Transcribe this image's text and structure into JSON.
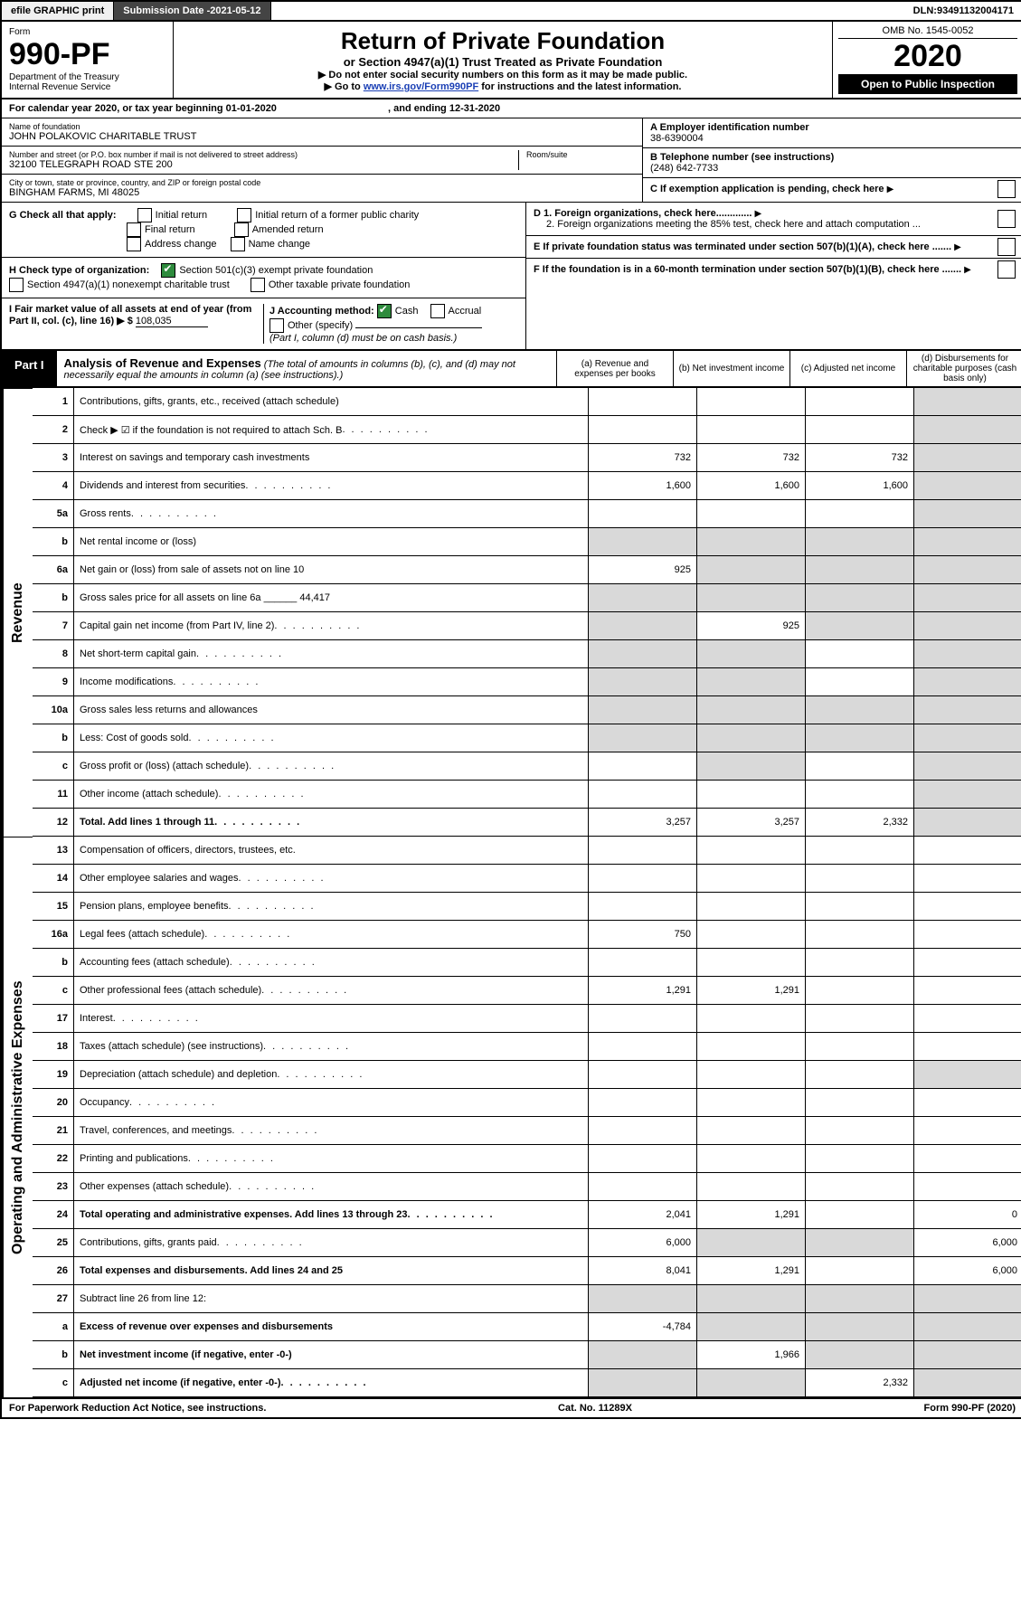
{
  "topbar": {
    "efile": "efile GRAPHIC print",
    "subdate_label": "Submission Date - ",
    "subdate": "2021-05-12",
    "dln_label": "DLN: ",
    "dln": "93491132004171"
  },
  "header": {
    "form_word": "Form",
    "form_num": "990-PF",
    "dept": "Department of the Treasury",
    "irs": "Internal Revenue Service",
    "title": "Return of Private Foundation",
    "subtitle": "or Section 4947(a)(1) Trust Treated as Private Foundation",
    "instr1": "▶ Do not enter social security numbers on this form as it may be made public.",
    "instr2_pre": "▶ Go to ",
    "instr2_link": "www.irs.gov/Form990PF",
    "instr2_post": " for instructions and the latest information.",
    "omb": "OMB No. 1545-0052",
    "year": "2020",
    "open": "Open to Public Inspection"
  },
  "cal": {
    "pre": "For calendar year 2020, or tax year beginning ",
    "begin": "01-01-2020",
    "mid": " , and ending ",
    "end": "12-31-2020"
  },
  "info": {
    "name_lbl": "Name of foundation",
    "name": "JOHN POLAKOVIC CHARITABLE TRUST",
    "addr_lbl": "Number and street (or P.O. box number if mail is not delivered to street address)",
    "addr": "32100 TELEGRAPH ROAD STE 200",
    "room_lbl": "Room/suite",
    "city_lbl": "City or town, state or province, country, and ZIP or foreign postal code",
    "city": "BINGHAM FARMS, MI  48025",
    "ein_lbl": "A Employer identification number",
    "ein": "38-6390004",
    "tel_lbl": "B Telephone number (see instructions)",
    "tel": "(248) 642-7733",
    "c_lbl": "C If exemption application is pending, check here"
  },
  "checks": {
    "g_lbl": "G Check all that apply:",
    "g_opts": [
      "Initial return",
      "Initial return of a former public charity",
      "Final return",
      "Amended return",
      "Address change",
      "Name change"
    ],
    "h_lbl": "H Check type of organization:",
    "h1": "Section 501(c)(3) exempt private foundation",
    "h2": "Section 4947(a)(1) nonexempt charitable trust",
    "h3": "Other taxable private foundation",
    "i_lbl": "I Fair market value of all assets at end of year (from Part II, col. (c), line 16) ▶ $",
    "i_val": "108,035",
    "j_lbl": "J Accounting method:",
    "j_cash": "Cash",
    "j_accr": "Accrual",
    "j_other": "Other (specify)",
    "j_note": "(Part I, column (d) must be on cash basis.)",
    "d1": "D 1. Foreign organizations, check here.............",
    "d2": "2. Foreign organizations meeting the 85% test, check here and attach computation ...",
    "e": "E  If private foundation status was terminated under section 507(b)(1)(A), check here .......",
    "f": "F  If the foundation is in a 60-month termination under section 507(b)(1)(B), check here ......."
  },
  "part1": {
    "tag": "Part I",
    "title": "Analysis of Revenue and Expenses",
    "note": " (The total of amounts in columns (b), (c), and (d) may not necessarily equal the amounts in column (a) (see instructions).)",
    "cols": {
      "a": "(a)  Revenue and expenses per books",
      "b": "(b)  Net investment income",
      "c": "(c)  Adjusted net income",
      "d": "(d)  Disbursements for charitable purposes (cash basis only)"
    }
  },
  "side": {
    "rev": "Revenue",
    "exp": "Operating and Administrative Expenses"
  },
  "rows": [
    {
      "n": "1",
      "d": "Contributions, gifts, grants, etc., received (attach schedule)",
      "a": "",
      "b": "",
      "c": "",
      "dd": "",
      "g": [
        0,
        0,
        0,
        1
      ]
    },
    {
      "n": "2",
      "d": "Check ▶ ☑ if the foundation is not required to attach Sch. B",
      "a": "",
      "b": "",
      "c": "",
      "dd": "",
      "g": [
        0,
        0,
        0,
        1
      ],
      "dots": 1
    },
    {
      "n": "3",
      "d": "Interest on savings and temporary cash investments",
      "a": "732",
      "b": "732",
      "c": "732",
      "dd": "",
      "g": [
        0,
        0,
        0,
        1
      ]
    },
    {
      "n": "4",
      "d": "Dividends and interest from securities",
      "a": "1,600",
      "b": "1,600",
      "c": "1,600",
      "dd": "",
      "g": [
        0,
        0,
        0,
        1
      ],
      "dots": 1
    },
    {
      "n": "5a",
      "d": "Gross rents",
      "a": "",
      "b": "",
      "c": "",
      "dd": "",
      "g": [
        0,
        0,
        0,
        1
      ],
      "dots": 1
    },
    {
      "n": "b",
      "d": "Net rental income or (loss)",
      "a": "",
      "b": "",
      "c": "",
      "dd": "",
      "g": [
        1,
        1,
        1,
        1
      ]
    },
    {
      "n": "6a",
      "d": "Net gain or (loss) from sale of assets not on line 10",
      "a": "925",
      "b": "",
      "c": "",
      "dd": "",
      "g": [
        0,
        1,
        1,
        1
      ]
    },
    {
      "n": "b",
      "d": "Gross sales price for all assets on line 6a ______ 44,417",
      "a": "",
      "b": "",
      "c": "",
      "dd": "",
      "g": [
        1,
        1,
        1,
        1
      ]
    },
    {
      "n": "7",
      "d": "Capital gain net income (from Part IV, line 2)",
      "a": "",
      "b": "925",
      "c": "",
      "dd": "",
      "g": [
        1,
        0,
        1,
        1
      ],
      "dots": 1
    },
    {
      "n": "8",
      "d": "Net short-term capital gain",
      "a": "",
      "b": "",
      "c": "",
      "dd": "",
      "g": [
        1,
        1,
        0,
        1
      ],
      "dots": 1
    },
    {
      "n": "9",
      "d": "Income modifications",
      "a": "",
      "b": "",
      "c": "",
      "dd": "",
      "g": [
        1,
        1,
        0,
        1
      ],
      "dots": 1
    },
    {
      "n": "10a",
      "d": "Gross sales less returns and allowances",
      "a": "",
      "b": "",
      "c": "",
      "dd": "",
      "g": [
        1,
        1,
        1,
        1
      ]
    },
    {
      "n": "b",
      "d": "Less: Cost of goods sold",
      "a": "",
      "b": "",
      "c": "",
      "dd": "",
      "g": [
        1,
        1,
        1,
        1
      ],
      "dots": 1
    },
    {
      "n": "c",
      "d": "Gross profit or (loss) (attach schedule)",
      "a": "",
      "b": "",
      "c": "",
      "dd": "",
      "g": [
        0,
        1,
        0,
        1
      ],
      "dots": 1
    },
    {
      "n": "11",
      "d": "Other income (attach schedule)",
      "a": "",
      "b": "",
      "c": "",
      "dd": "",
      "g": [
        0,
        0,
        0,
        1
      ],
      "dots": 1
    },
    {
      "n": "12",
      "d": "Total. Add lines 1 through 11",
      "a": "3,257",
      "b": "3,257",
      "c": "2,332",
      "dd": "",
      "g": [
        0,
        0,
        0,
        1
      ],
      "b1": 1,
      "dots": 1
    }
  ],
  "rows2": [
    {
      "n": "13",
      "d": "Compensation of officers, directors, trustees, etc.",
      "a": "",
      "b": "",
      "c": "",
      "dd": "",
      "g": [
        0,
        0,
        0,
        0
      ]
    },
    {
      "n": "14",
      "d": "Other employee salaries and wages",
      "a": "",
      "b": "",
      "c": "",
      "dd": "",
      "g": [
        0,
        0,
        0,
        0
      ],
      "dots": 1
    },
    {
      "n": "15",
      "d": "Pension plans, employee benefits",
      "a": "",
      "b": "",
      "c": "",
      "dd": "",
      "g": [
        0,
        0,
        0,
        0
      ],
      "dots": 1
    },
    {
      "n": "16a",
      "d": "Legal fees (attach schedule)",
      "a": "750",
      "b": "",
      "c": "",
      "dd": "",
      "g": [
        0,
        0,
        0,
        0
      ],
      "dots": 1
    },
    {
      "n": "b",
      "d": "Accounting fees (attach schedule)",
      "a": "",
      "b": "",
      "c": "",
      "dd": "",
      "g": [
        0,
        0,
        0,
        0
      ],
      "dots": 1
    },
    {
      "n": "c",
      "d": "Other professional fees (attach schedule)",
      "a": "1,291",
      "b": "1,291",
      "c": "",
      "dd": "",
      "g": [
        0,
        0,
        0,
        0
      ],
      "dots": 1
    },
    {
      "n": "17",
      "d": "Interest",
      "a": "",
      "b": "",
      "c": "",
      "dd": "",
      "g": [
        0,
        0,
        0,
        0
      ],
      "dots": 1
    },
    {
      "n": "18",
      "d": "Taxes (attach schedule) (see instructions)",
      "a": "",
      "b": "",
      "c": "",
      "dd": "",
      "g": [
        0,
        0,
        0,
        0
      ],
      "dots": 1
    },
    {
      "n": "19",
      "d": "Depreciation (attach schedule) and depletion",
      "a": "",
      "b": "",
      "c": "",
      "dd": "",
      "g": [
        0,
        0,
        0,
        1
      ],
      "dots": 1
    },
    {
      "n": "20",
      "d": "Occupancy",
      "a": "",
      "b": "",
      "c": "",
      "dd": "",
      "g": [
        0,
        0,
        0,
        0
      ],
      "dots": 1
    },
    {
      "n": "21",
      "d": "Travel, conferences, and meetings",
      "a": "",
      "b": "",
      "c": "",
      "dd": "",
      "g": [
        0,
        0,
        0,
        0
      ],
      "dots": 1
    },
    {
      "n": "22",
      "d": "Printing and publications",
      "a": "",
      "b": "",
      "c": "",
      "dd": "",
      "g": [
        0,
        0,
        0,
        0
      ],
      "dots": 1
    },
    {
      "n": "23",
      "d": "Other expenses (attach schedule)",
      "a": "",
      "b": "",
      "c": "",
      "dd": "",
      "g": [
        0,
        0,
        0,
        0
      ],
      "dots": 1
    },
    {
      "n": "24",
      "d": "Total operating and administrative expenses. Add lines 13 through 23",
      "a": "2,041",
      "b": "1,291",
      "c": "",
      "dd": "0",
      "g": [
        0,
        0,
        0,
        0
      ],
      "b1": 1,
      "dots": 1
    },
    {
      "n": "25",
      "d": "Contributions, gifts, grants paid",
      "a": "6,000",
      "b": "",
      "c": "",
      "dd": "6,000",
      "g": [
        0,
        1,
        1,
        0
      ],
      "dots": 1
    },
    {
      "n": "26",
      "d": "Total expenses and disbursements. Add lines 24 and 25",
      "a": "8,041",
      "b": "1,291",
      "c": "",
      "dd": "6,000",
      "g": [
        0,
        0,
        0,
        0
      ],
      "b1": 1
    },
    {
      "n": "27",
      "d": "Subtract line 26 from line 12:",
      "a": "",
      "b": "",
      "c": "",
      "dd": "",
      "g": [
        1,
        1,
        1,
        1
      ]
    },
    {
      "n": "a",
      "d": "Excess of revenue over expenses and disbursements",
      "a": "-4,784",
      "b": "",
      "c": "",
      "dd": "",
      "g": [
        0,
        1,
        1,
        1
      ],
      "b1": 1
    },
    {
      "n": "b",
      "d": "Net investment income (if negative, enter -0-)",
      "a": "",
      "b": "1,966",
      "c": "",
      "dd": "",
      "g": [
        1,
        0,
        1,
        1
      ],
      "b1": 1
    },
    {
      "n": "c",
      "d": "Adjusted net income (if negative, enter -0-)",
      "a": "",
      "b": "",
      "c": "2,332",
      "dd": "",
      "g": [
        1,
        1,
        0,
        1
      ],
      "b1": 1,
      "dots": 1
    }
  ],
  "footer": {
    "left": "For Paperwork Reduction Act Notice, see instructions.",
    "mid": "Cat. No. 11289X",
    "right": "Form 990-PF (2020)"
  }
}
